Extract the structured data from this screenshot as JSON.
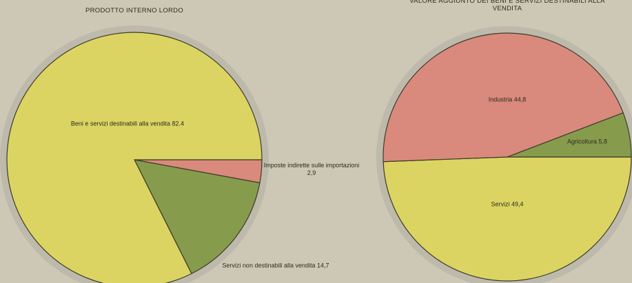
{
  "chart_data": [
    {
      "type": "pie",
      "title": "PRODOTTO INTERNO LORDO",
      "categories": [
        "Imposte indirette sulle importazioni",
        "Servizi non destinabili alla vendita",
        "Beni e servizi destinabili alla vendita"
      ],
      "values": [
        2.9,
        14.7,
        82.4
      ],
      "value_labels": [
        "2,9",
        "14,7",
        "82.4"
      ],
      "colors": [
        "#d98a7c",
        "#869c4c",
        "#dcd462"
      ]
    },
    {
      "type": "pie",
      "title": "VALORE AGGIUNTO DEI BENI E SERVIZI DESTINABILI ALLA VENDITA",
      "categories": [
        "Servizi",
        "Industria",
        "Agricoltura"
      ],
      "values": [
        49.4,
        44.8,
        5.8
      ],
      "value_labels": [
        "49,4",
        "44,8",
        "5,8"
      ],
      "colors": [
        "#dcd462",
        "#d98a7c",
        "#869c4c"
      ]
    }
  ]
}
